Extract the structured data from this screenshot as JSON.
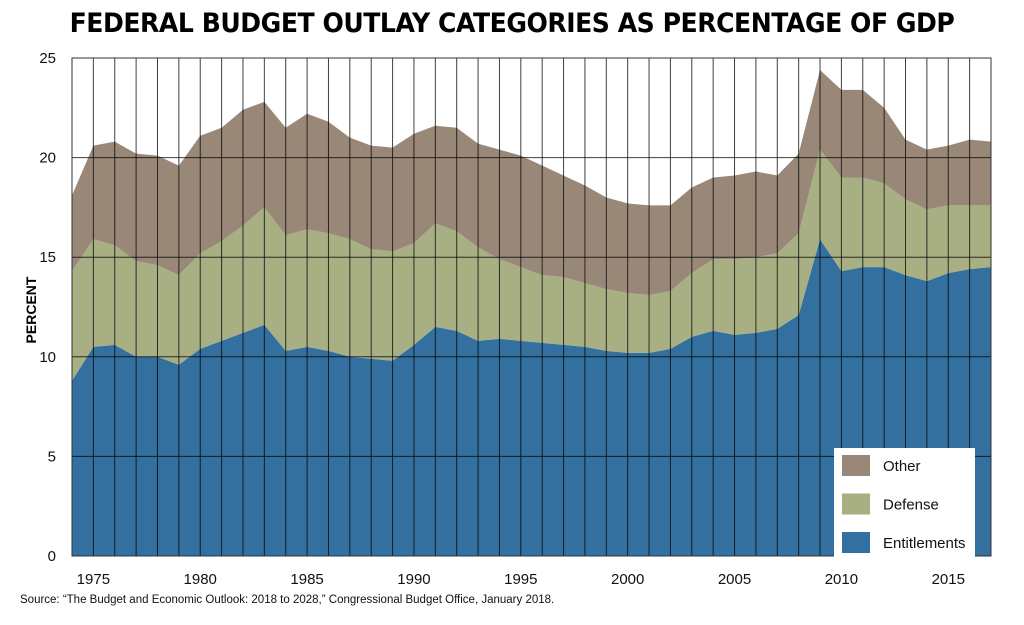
{
  "title": "FEDERAL BUDGET OUTLAY CATEGORIES AS PERCENTAGE OF GDP",
  "source": "Source: “The Budget and Economic Outlook: 2018 to 2028,” Congressional Budget Office, January 2018.",
  "chart_data": {
    "type": "area",
    "stacked": true,
    "title": "FEDERAL BUDGET OUTLAY CATEGORIES AS PERCENTAGE OF GDP",
    "xlabel": "",
    "ylabel": "PERCENT",
    "xlim": [
      1974,
      2017
    ],
    "ylim": [
      0,
      25
    ],
    "yticks": [
      0,
      5,
      10,
      15,
      20,
      25
    ],
    "xticks": [
      1975,
      1980,
      1985,
      1990,
      1995,
      2000,
      2005,
      2010,
      2015
    ],
    "grid": true,
    "legend_position": "bottom-right",
    "x": [
      1974,
      1975,
      1976,
      1977,
      1978,
      1979,
      1980,
      1981,
      1982,
      1983,
      1984,
      1985,
      1986,
      1987,
      1988,
      1989,
      1990,
      1991,
      1992,
      1993,
      1994,
      1995,
      1996,
      1997,
      1998,
      1999,
      2000,
      2001,
      2002,
      2003,
      2004,
      2005,
      2006,
      2007,
      2008,
      2009,
      2010,
      2011,
      2012,
      2013,
      2014,
      2015,
      2016,
      2017
    ],
    "series": [
      {
        "name": "Entitlements",
        "color": "#33709f",
        "values": [
          8.8,
          10.5,
          10.6,
          10.0,
          10.0,
          9.6,
          10.4,
          10.8,
          11.2,
          11.6,
          10.3,
          10.5,
          10.3,
          10.0,
          9.9,
          9.8,
          10.6,
          11.5,
          11.3,
          10.8,
          10.9,
          10.8,
          10.7,
          10.6,
          10.5,
          10.3,
          10.2,
          10.2,
          10.4,
          11.0,
          11.3,
          11.1,
          11.2,
          11.4,
          12.1,
          15.9,
          14.3,
          14.5,
          14.5,
          14.1,
          13.8,
          14.2,
          14.4,
          14.5
        ]
      },
      {
        "name": "Defense",
        "color": "#a7af83",
        "values": [
          5.5,
          5.4,
          5.0,
          4.8,
          4.6,
          4.5,
          4.8,
          5.0,
          5.4,
          5.9,
          5.8,
          5.9,
          5.9,
          5.9,
          5.5,
          5.5,
          5.1,
          5.2,
          5.0,
          4.7,
          4.0,
          3.7,
          3.4,
          3.4,
          3.2,
          3.1,
          3.0,
          2.9,
          2.9,
          3.2,
          3.6,
          3.8,
          3.8,
          3.8,
          4.1,
          4.5,
          4.7,
          4.5,
          4.2,
          3.8,
          3.6,
          3.4,
          3.2,
          3.1
        ]
      },
      {
        "name": "Other",
        "color": "#998878",
        "values": [
          3.8,
          4.7,
          5.2,
          5.4,
          5.5,
          5.5,
          5.9,
          5.7,
          5.8,
          5.3,
          5.4,
          5.8,
          5.6,
          5.1,
          5.2,
          5.2,
          5.5,
          4.9,
          5.2,
          5.2,
          5.5,
          5.6,
          5.5,
          5.1,
          4.9,
          4.6,
          4.5,
          4.5,
          4.3,
          4.3,
          4.1,
          4.2,
          4.3,
          3.9,
          4.0,
          4.0,
          4.4,
          4.4,
          3.8,
          3.0,
          3.0,
          3.0,
          3.3,
          3.2
        ]
      }
    ],
    "legend_order": [
      "Other",
      "Defense",
      "Entitlements"
    ]
  }
}
